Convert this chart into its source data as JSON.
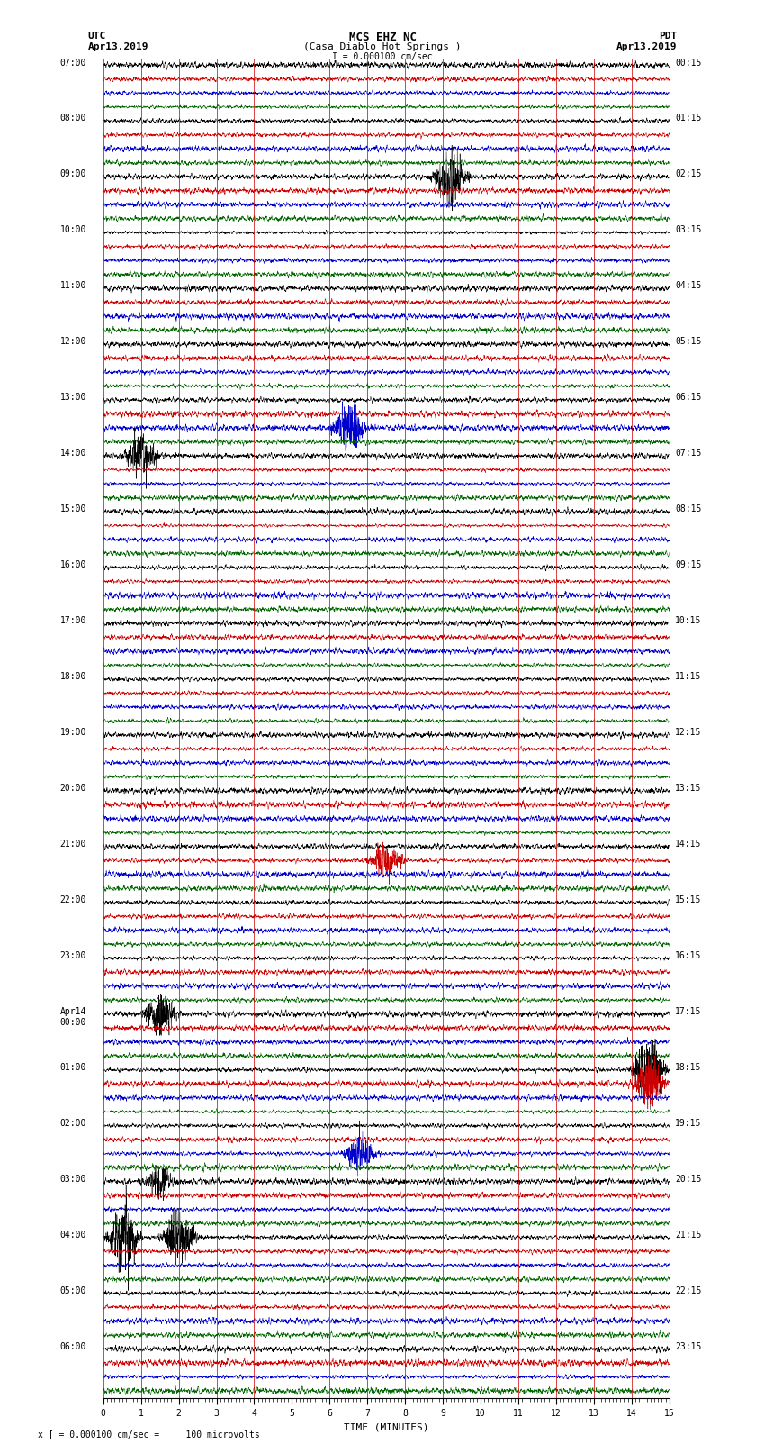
{
  "title_line1": "MCS EHZ NC",
  "title_line2": "(Casa Diablo Hot Springs )",
  "title_line3": "I = 0.000100 cm/sec",
  "left_header_line1": "UTC",
  "left_header_line2": "Apr13,2019",
  "right_header_line1": "PDT",
  "right_header_line2": "Apr13,2019",
  "footer_text": "x [ = 0.000100 cm/sec =     100 microvolts",
  "xlabel": "TIME (MINUTES)",
  "xlim": [
    0,
    15
  ],
  "xticks": [
    0,
    1,
    2,
    3,
    4,
    5,
    6,
    7,
    8,
    9,
    10,
    11,
    12,
    13,
    14,
    15
  ],
  "background_color": "#ffffff",
  "trace_colors": [
    "#000000",
    "#cc0000",
    "#0000cc",
    "#006600"
  ],
  "num_hour_groups": 24,
  "traces_per_group": 4,
  "left_times_utc": [
    "07:00",
    "08:00",
    "09:00",
    "10:00",
    "11:00",
    "12:00",
    "13:00",
    "14:00",
    "15:00",
    "16:00",
    "17:00",
    "18:00",
    "19:00",
    "20:00",
    "21:00",
    "22:00",
    "23:00",
    "Apr14\n00:00",
    "01:00",
    "02:00",
    "03:00",
    "04:00",
    "05:00",
    "06:00"
  ],
  "right_times_pdt": [
    "00:15",
    "01:15",
    "02:15",
    "03:15",
    "04:15",
    "05:15",
    "06:15",
    "07:15",
    "08:15",
    "09:15",
    "10:15",
    "11:15",
    "12:15",
    "13:15",
    "14:15",
    "15:15",
    "16:15",
    "17:15",
    "18:15",
    "19:15",
    "20:15",
    "21:15",
    "22:15",
    "23:15"
  ],
  "noise_seed": 12345,
  "base_amplitude": 0.28,
  "grid_color": "#cc0000",
  "grid_linewidth": 0.6,
  "trace_linewidth": 0.35,
  "font_size_labels": 7,
  "font_size_title": 9,
  "font_family": "monospace",
  "minor_tick_count": 10
}
